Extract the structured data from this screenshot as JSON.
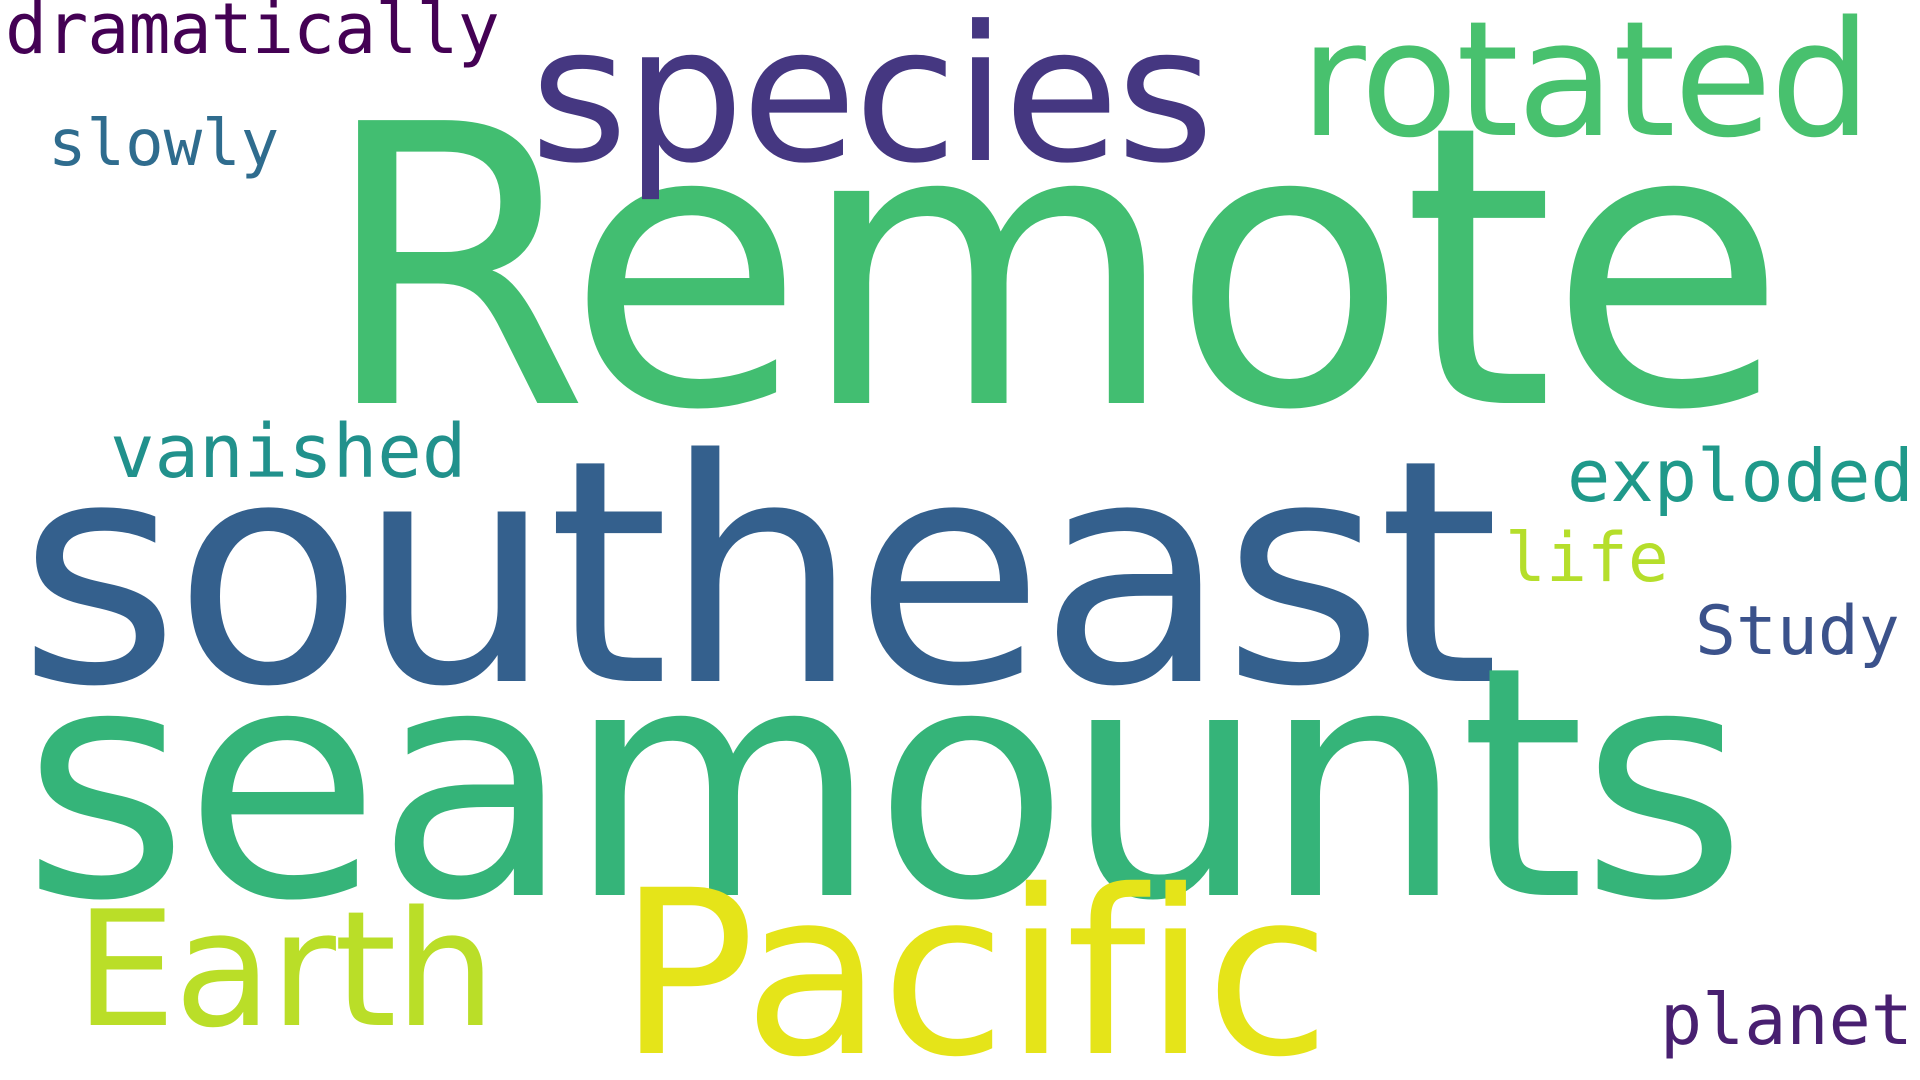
{
  "words": [
    {
      "key": "remote",
      "text": "Remote",
      "color": "#42be71"
    },
    {
      "key": "southeast",
      "text": "southeast",
      "color": "#34608d"
    },
    {
      "key": "seamounts",
      "text": "seamounts",
      "color": "#35b479"
    },
    {
      "key": "pacific",
      "text": "Pacific",
      "color": "#e5e419"
    },
    {
      "key": "species",
      "text": "species",
      "color": "#453781"
    },
    {
      "key": "rotated",
      "text": "rotated",
      "color": "#48c16e"
    },
    {
      "key": "earth",
      "text": "Earth",
      "color": "#bade28"
    },
    {
      "key": "dramatically",
      "text": "dramatically",
      "color": "#440154"
    },
    {
      "key": "slowly",
      "text": "slowly",
      "color": "#2f6c8e"
    },
    {
      "key": "vanished",
      "text": "vanished",
      "color": "#21918c"
    },
    {
      "key": "exploded",
      "text": "exploded",
      "color": "#1f998a"
    },
    {
      "key": "life",
      "text": "life",
      "color": "#b5de2b"
    },
    {
      "key": "study",
      "text": "Study",
      "color": "#3b528b"
    },
    {
      "key": "planet",
      "text": "planet",
      "color": "#481f70"
    }
  ]
}
